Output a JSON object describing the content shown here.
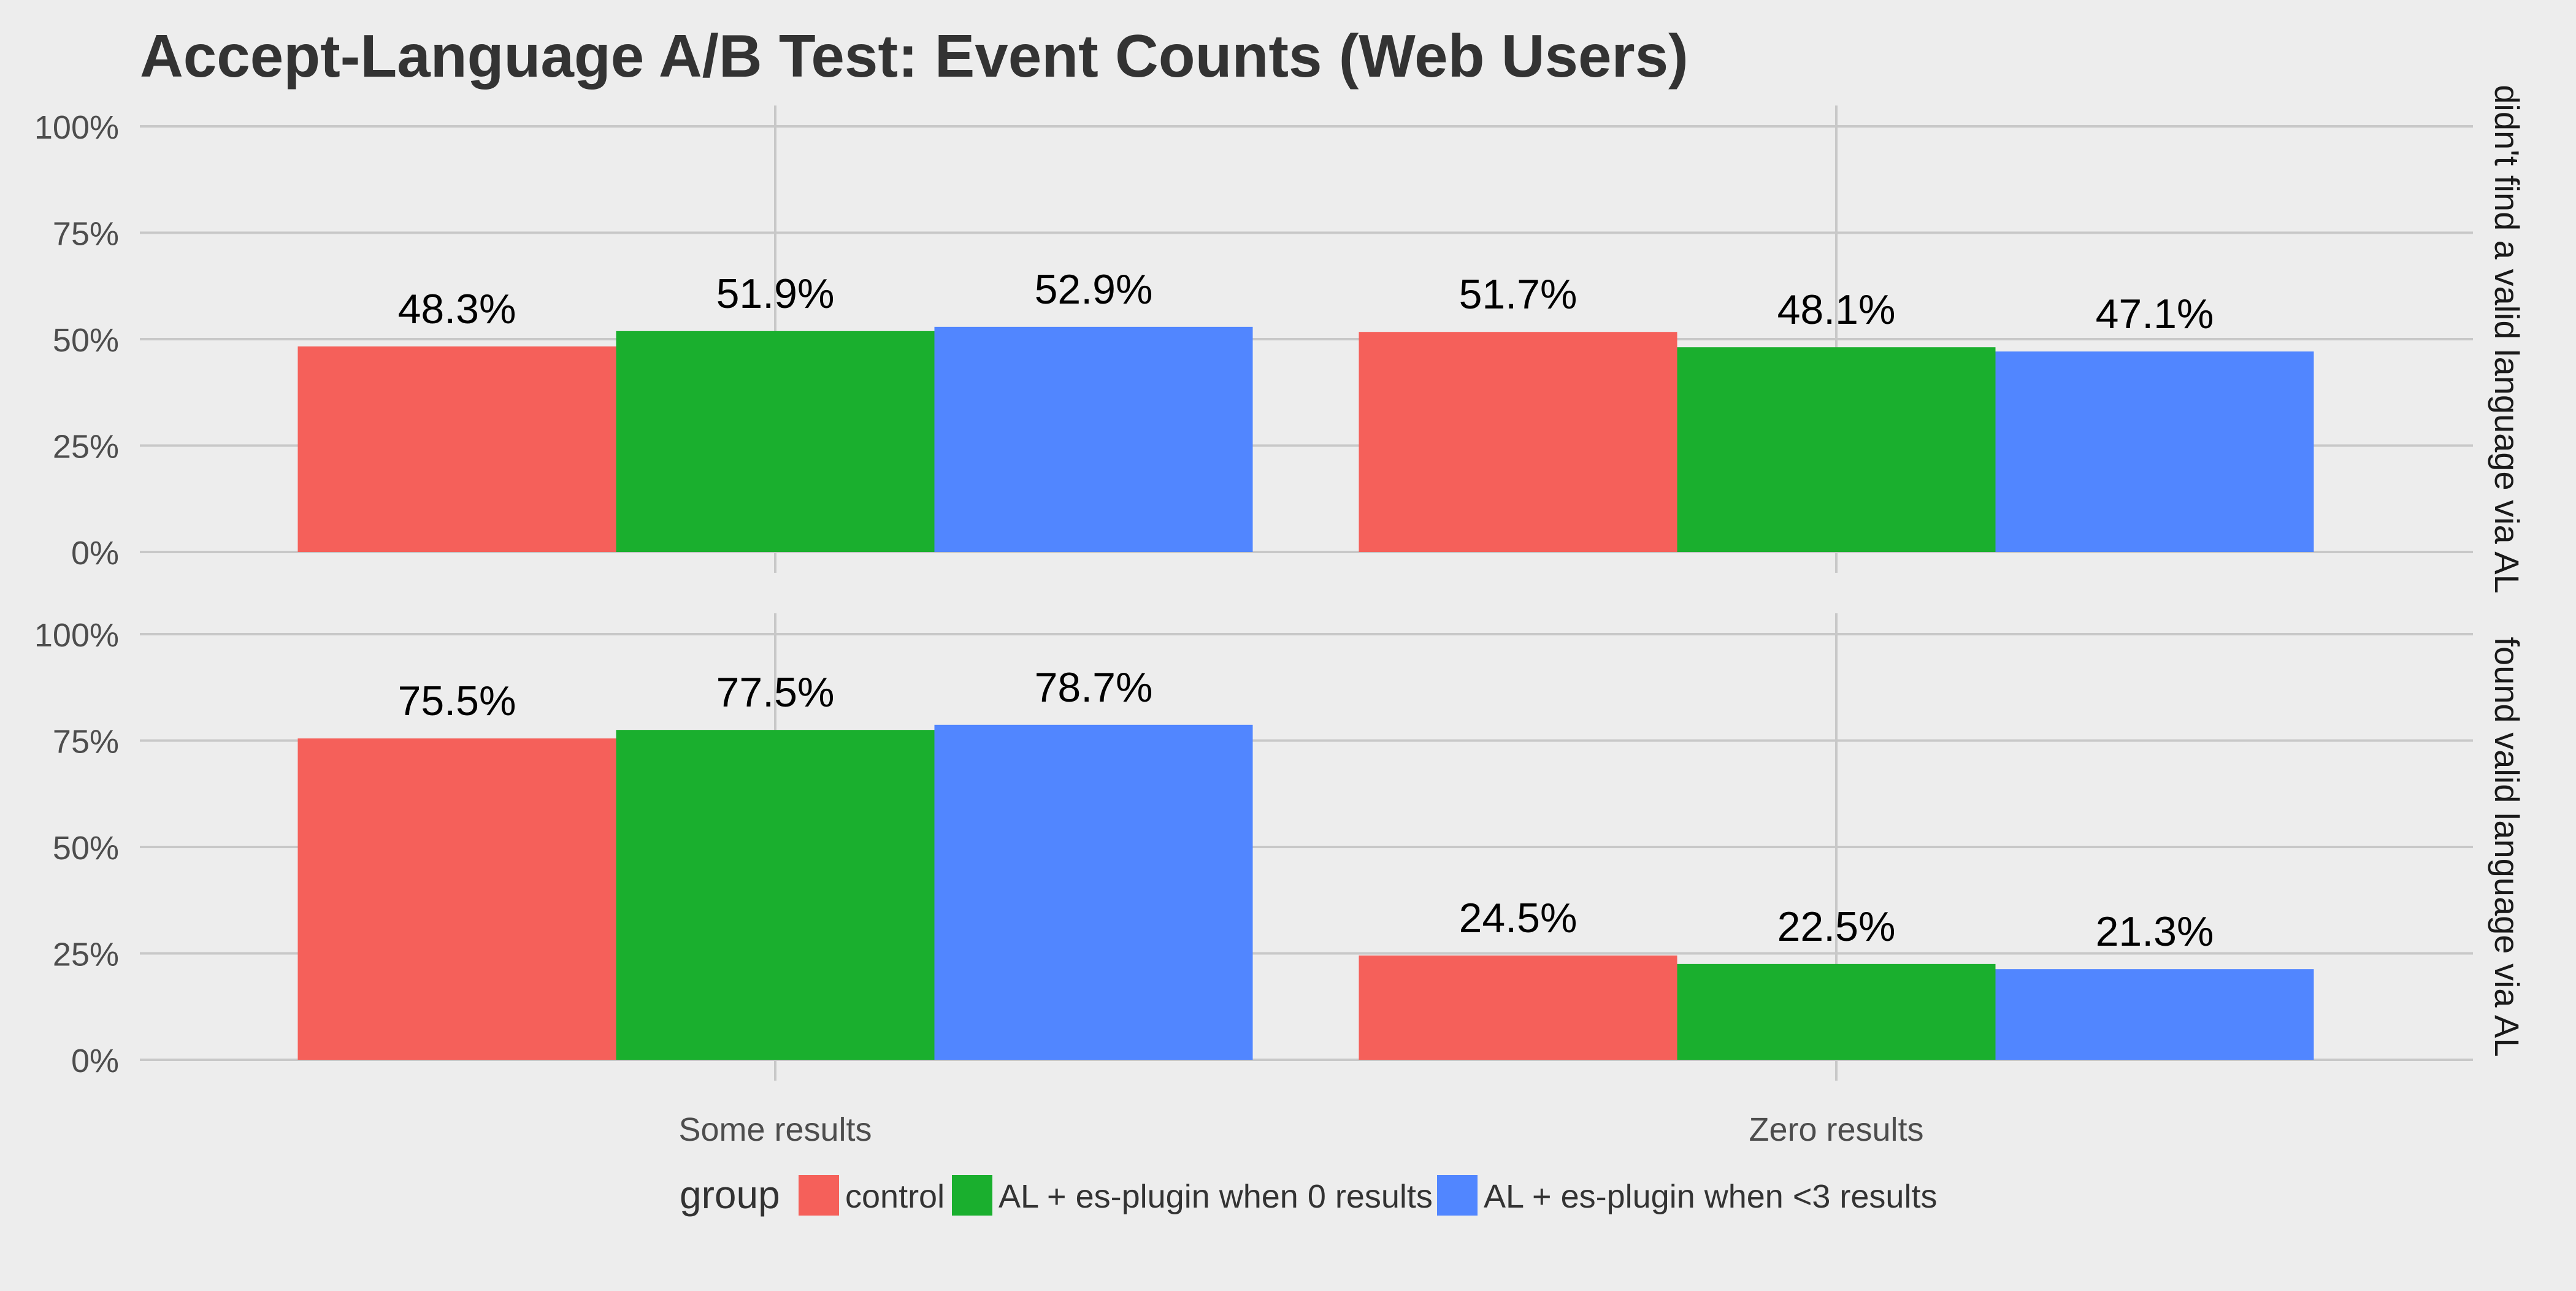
{
  "chart_data": {
    "type": "bar",
    "title": "Accept-Language A/B Test: Event Counts (Web Users)",
    "xlabel": "",
    "ylabel": "",
    "categories": [
      "Some results",
      "Zero results"
    ],
    "yticks": [
      "0%",
      "25%",
      "50%",
      "75%",
      "100%"
    ],
    "ylim": [
      0,
      100
    ],
    "grid": true,
    "legend": {
      "position": "bottom",
      "title": "group"
    },
    "series_meta": [
      {
        "name": "control",
        "color": "#F5605A"
      },
      {
        "name": "AL + es-plugin when 0 results",
        "color": "#1AAF2E"
      },
      {
        "name": "AL + es-plugin when <3 results",
        "color": "#5186FF"
      }
    ],
    "facets": [
      {
        "label": "didn't find a valid language via AL",
        "series": [
          {
            "name": "control",
            "values": [
              48.3,
              51.7
            ],
            "labels": [
              "48.3%",
              "51.7%"
            ]
          },
          {
            "name": "AL + es-plugin when 0 results",
            "values": [
              51.9,
              48.1
            ],
            "labels": [
              "51.9%",
              "48.1%"
            ]
          },
          {
            "name": "AL + es-plugin when <3 results",
            "values": [
              52.9,
              47.1
            ],
            "labels": [
              "52.9%",
              "47.1%"
            ]
          }
        ]
      },
      {
        "label": "found valid language via AL",
        "series": [
          {
            "name": "control",
            "values": [
              75.5,
              24.5
            ],
            "labels": [
              "75.5%",
              "24.5%"
            ]
          },
          {
            "name": "AL + es-plugin when 0 results",
            "values": [
              77.5,
              22.5
            ],
            "labels": [
              "77.5%",
              "22.5%"
            ]
          },
          {
            "name": "AL + es-plugin when <3 results",
            "values": [
              78.7,
              21.3
            ],
            "labels": [
              "78.7%",
              "21.3%"
            ]
          }
        ]
      }
    ]
  }
}
